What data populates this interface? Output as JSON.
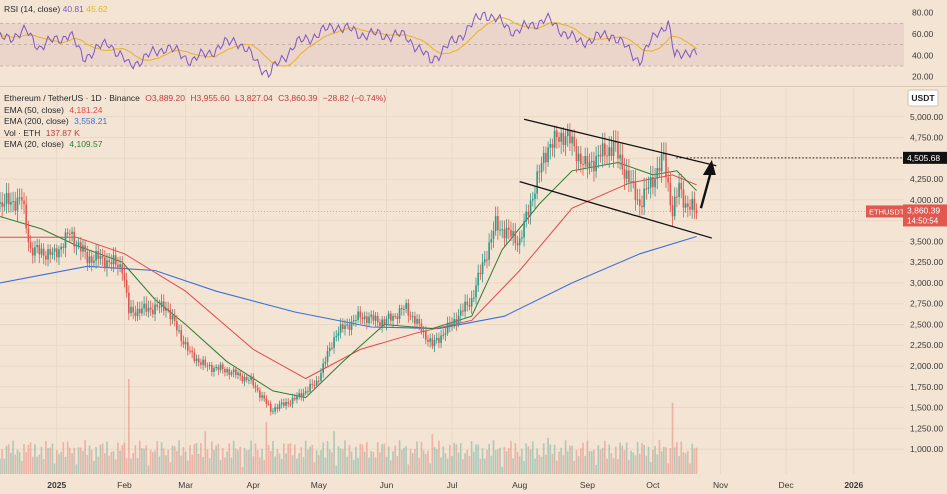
{
  "rsi_legend": {
    "label": "RSI (14, close)",
    "value": "40.81",
    "ma": "45.62"
  },
  "main_legend": {
    "symbol": "Ethereum / TetherUS · 1D · Binance",
    "open": "O3,889.20",
    "high": "H3,955.60",
    "low": "L3,827.04",
    "close": "C3,860.39",
    "change": "−28.82 (−0.74%)",
    "ema50_label": "EMA (50, close)",
    "ema50_value": "4,181.24",
    "ema200_label": "EMA (200, close)",
    "ema200_value": "3,558.21",
    "vol_label": "Vol · ETH",
    "vol_value": "137.87 K",
    "ema20_label": "EMA (20, close)",
    "ema20_value": "4,109.57"
  },
  "currency_badge": "USDT",
  "price_labels": {
    "target": "4,505.68",
    "symbol": "ETHUSDT",
    "last": "3,860.39",
    "countdown": "14:50:54"
  },
  "colors": {
    "up": "#2f9a8a",
    "down": "#e0584f",
    "ema50": "#e5484d",
    "ema200": "#3f6fd8",
    "ema20": "#2e7d32",
    "rsi": "#7e57c2",
    "rsi_ma": "#e6b422"
  },
  "chart_data": {
    "type": "candlestick",
    "symbol": "Ethereum / TetherUS",
    "interval": "1D",
    "exchange": "Binance",
    "y_range": [
      700,
      5250
    ],
    "y_ticks": [
      1000,
      1250,
      1500,
      1750,
      2000,
      2250,
      2500,
      2750,
      3000,
      3250,
      3500,
      3750,
      4000,
      4250,
      4500,
      4750,
      5000
    ],
    "y_tick_labels": [
      "1,000.00",
      "1,250.00",
      "1,500.00",
      "1,750.00",
      "2,000.00",
      "2,250.00",
      "2,500.00",
      "2,750.00",
      "3,000.00",
      "3,250.00",
      "3,500.00",
      "3,750.00",
      "4,000.00",
      "4,250.00",
      "4,500.00",
      "4,750.00",
      "5,000.00"
    ],
    "x_range": [
      "2024-12-06",
      "2026-01-24"
    ],
    "x_ticks": [
      {
        "date": "2025-01-01",
        "label": "2025"
      },
      {
        "date": "2025-02-01",
        "label": "Feb"
      },
      {
        "date": "2025-03-01",
        "label": "Mar"
      },
      {
        "date": "2025-04-01",
        "label": "Apr"
      },
      {
        "date": "2025-05-01",
        "label": "May"
      },
      {
        "date": "2025-06-01",
        "label": "Jun"
      },
      {
        "date": "2025-07-01",
        "label": "Jul"
      },
      {
        "date": "2025-08-01",
        "label": "Aug"
      },
      {
        "date": "2025-09-01",
        "label": "Sep"
      },
      {
        "date": "2025-10-01",
        "label": "Oct"
      },
      {
        "date": "2025-11-01",
        "label": "Nov"
      },
      {
        "date": "2025-12-01",
        "label": "Dec"
      },
      {
        "date": "2026-01-01",
        "label": "2026"
      }
    ],
    "close_path": [
      [
        "2024-12-06",
        3950
      ],
      [
        "2024-12-16",
        4000
      ],
      [
        "2024-12-20",
        3400
      ],
      [
        "2024-12-31",
        3340
      ],
      [
        "2025-01-07",
        3600
      ],
      [
        "2025-01-15",
        3300
      ],
      [
        "2025-01-20",
        3300
      ],
      [
        "2025-01-31",
        3200
      ],
      [
        "2025-02-03",
        2650
      ],
      [
        "2025-02-10",
        2680
      ],
      [
        "2025-02-20",
        2720
      ],
      [
        "2025-02-25",
        2450
      ],
      [
        "2025-03-03",
        2150
      ],
      [
        "2025-03-10",
        2000
      ],
      [
        "2025-03-20",
        1950
      ],
      [
        "2025-03-31",
        1820
      ],
      [
        "2025-04-07",
        1550
      ],
      [
        "2025-04-09",
        1470
      ],
      [
        "2025-04-20",
        1600
      ],
      [
        "2025-04-30",
        1800
      ],
      [
        "2025-05-09",
        2400
      ],
      [
        "2025-05-20",
        2600
      ],
      [
        "2025-05-31",
        2530
      ],
      [
        "2025-06-10",
        2700
      ],
      [
        "2025-06-22",
        2250
      ],
      [
        "2025-06-30",
        2480
      ],
      [
        "2025-07-10",
        2800
      ],
      [
        "2025-07-21",
        3700
      ],
      [
        "2025-08-01",
        3500
      ],
      [
        "2025-08-09",
        4250
      ],
      [
        "2025-08-14",
        4650
      ],
      [
        "2025-08-22",
        4800
      ],
      [
        "2025-08-31",
        4400
      ],
      [
        "2025-09-13",
        4650
      ],
      [
        "2025-09-25",
        3950
      ],
      [
        "2025-10-06",
        4500
      ],
      [
        "2025-10-10",
        3850
      ],
      [
        "2025-10-13",
        4150
      ],
      [
        "2025-10-16",
        3950
      ],
      [
        "2025-10-21",
        3860.39
      ]
    ],
    "ema_20": [
      [
        "2024-12-06",
        3800
      ],
      [
        "2024-12-25",
        3650
      ],
      [
        "2025-01-10",
        3450
      ],
      [
        "2025-01-31",
        3250
      ],
      [
        "2025-02-15",
        2800
      ],
      [
        "2025-03-01",
        2500
      ],
      [
        "2025-03-20",
        2050
      ],
      [
        "2025-04-10",
        1700
      ],
      [
        "2025-04-25",
        1620
      ],
      [
        "2025-05-12",
        2050
      ],
      [
        "2025-05-31",
        2500
      ],
      [
        "2025-06-22",
        2450
      ],
      [
        "2025-07-10",
        2600
      ],
      [
        "2025-07-24",
        3400
      ],
      [
        "2025-08-10",
        3950
      ],
      [
        "2025-08-25",
        4350
      ],
      [
        "2025-09-15",
        4450
      ],
      [
        "2025-10-01",
        4300
      ],
      [
        "2025-10-12",
        4350
      ],
      [
        "2025-10-21",
        4109.57
      ]
    ],
    "ema_50": [
      [
        "2024-12-06",
        3550
      ],
      [
        "2025-01-10",
        3550
      ],
      [
        "2025-02-01",
        3350
      ],
      [
        "2025-03-01",
        2900
      ],
      [
        "2025-04-01",
        2200
      ],
      [
        "2025-04-25",
        1850
      ],
      [
        "2025-05-20",
        2200
      ],
      [
        "2025-06-15",
        2400
      ],
      [
        "2025-07-10",
        2550
      ],
      [
        "2025-08-01",
        3150
      ],
      [
        "2025-08-25",
        3900
      ],
      [
        "2025-09-20",
        4200
      ],
      [
        "2025-10-10",
        4300
      ],
      [
        "2025-10-21",
        4181.24
      ]
    ],
    "ema_200": [
      [
        "2024-12-06",
        3000
      ],
      [
        "2025-01-15",
        3200
      ],
      [
        "2025-02-15",
        3150
      ],
      [
        "2025-03-15",
        2900
      ],
      [
        "2025-04-20",
        2650
      ],
      [
        "2025-05-25",
        2470
      ],
      [
        "2025-06-25",
        2450
      ],
      [
        "2025-07-25",
        2600
      ],
      [
        "2025-08-25",
        3000
      ],
      [
        "2025-09-25",
        3350
      ],
      [
        "2025-10-21",
        3558.21
      ]
    ],
    "channel_upper": [
      [
        "2025-08-03",
        4970
      ],
      [
        "2025-10-30",
        4410
      ]
    ],
    "channel_lower": [
      [
        "2025-08-01",
        4220
      ],
      [
        "2025-10-28",
        3540
      ]
    ],
    "arrow": [
      [
        "2025-10-23",
        3900
      ],
      [
        "2025-10-28",
        4480
      ]
    ],
    "target_line": 4505.68,
    "last_price": 3860.39,
    "rsi": {
      "y_range": [
        15,
        88
      ],
      "y_ticks": [
        20,
        40,
        60,
        80
      ],
      "y_tick_labels": [
        "20.00",
        "40.00",
        "60.00",
        "80.00"
      ],
      "band": [
        30,
        70
      ],
      "value": 40.81,
      "ma": 45.62,
      "path": [
        [
          "2024-12-06",
          55
        ],
        [
          "2024-12-18",
          62
        ],
        [
          "2024-12-24",
          48
        ],
        [
          "2025-01-07",
          60
        ],
        [
          "2025-01-13",
          38
        ],
        [
          "2025-01-25",
          52
        ],
        [
          "2025-02-03",
          30
        ],
        [
          "2025-02-20",
          48
        ],
        [
          "2025-03-04",
          35
        ],
        [
          "2025-03-11",
          42
        ],
        [
          "2025-03-24",
          55
        ],
        [
          "2025-04-08",
          22
        ],
        [
          "2025-04-20",
          50
        ],
        [
          "2025-05-09",
          68
        ],
        [
          "2025-05-20",
          60
        ],
        [
          "2025-06-10",
          58
        ],
        [
          "2025-06-21",
          35
        ],
        [
          "2025-07-03",
          55
        ],
        [
          "2025-07-16",
          80
        ],
        [
          "2025-07-30",
          62
        ],
        [
          "2025-08-13",
          74
        ],
        [
          "2025-08-28",
          52
        ],
        [
          "2025-09-12",
          60
        ],
        [
          "2025-09-25",
          35
        ],
        [
          "2025-10-03",
          62
        ],
        [
          "2025-10-08",
          70
        ],
        [
          "2025-10-11",
          38
        ],
        [
          "2025-10-17",
          45
        ],
        [
          "2025-10-21",
          40.81
        ]
      ]
    },
    "volume_spikes": [
      [
        "2025-02-03",
        1.0
      ],
      [
        "2025-03-10",
        0.45
      ],
      [
        "2025-04-07",
        0.55
      ],
      [
        "2025-05-08",
        0.45
      ],
      [
        "2025-06-22",
        0.42
      ],
      [
        "2025-08-14",
        0.38
      ],
      [
        "2025-10-10",
        0.75
      ]
    ]
  }
}
